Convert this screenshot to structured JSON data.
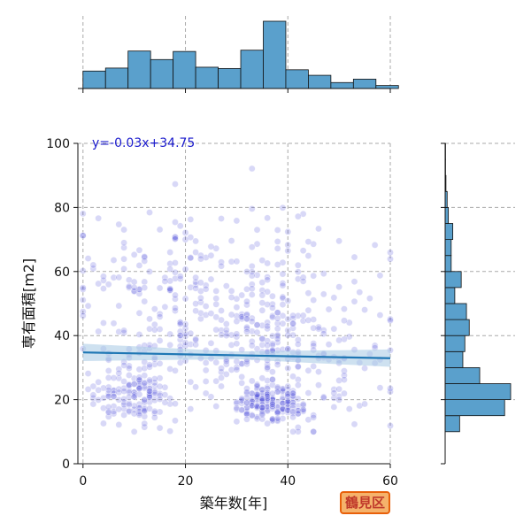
{
  "chart_data": {
    "type": "scatter",
    "xlabel": "築年数[年]",
    "ylabel": "専有面積[m2]",
    "xlim": [
      -1,
      60
    ],
    "ylim": [
      0,
      100
    ],
    "x_ticks": [
      0,
      20,
      40,
      60
    ],
    "y_ticks": [
      0,
      20,
      40,
      60,
      80,
      100
    ],
    "grid": true,
    "regression": {
      "label": "y=-0.03x+34.75",
      "slope": -0.03,
      "intercept": 34.75
    },
    "clusters": [
      {
        "cx": 10,
        "cy": 22,
        "sx": 4,
        "sy": 5,
        "n": 150
      },
      {
        "cx": 36,
        "cy": 19,
        "sx": 3.5,
        "sy": 3,
        "n": 170
      },
      {
        "cx": 17,
        "cy": 45,
        "sx": 9,
        "sy": 12,
        "n": 150
      },
      {
        "cx": 36,
        "cy": 40,
        "sx": 6,
        "sy": 10,
        "n": 170
      },
      {
        "cx": 28,
        "cy": 62,
        "sx": 16,
        "sy": 12,
        "n": 120
      },
      {
        "cx": 48,
        "cy": 30,
        "sx": 8,
        "sy": 12,
        "n": 80
      }
    ],
    "x_histogram": {
      "bin_edges": [
        0,
        4.4,
        8.8,
        13.2,
        17.6,
        22,
        26.4,
        30.8,
        35.2,
        39.6,
        44,
        48.4,
        52.8,
        57.2,
        61.6
      ],
      "counts": [
        41,
        48,
        88,
        68,
        87,
        50,
        47,
        90,
        158,
        44,
        31,
        14,
        22,
        7
      ]
    },
    "y_histogram": {
      "bin_edges": [
        10,
        15,
        20,
        25,
        30,
        35,
        40,
        45,
        50,
        55,
        60,
        65,
        70,
        75,
        80,
        85,
        90,
        95,
        100
      ],
      "counts": [
        36,
        148,
        163,
        86,
        44,
        49,
        60,
        53,
        24,
        40,
        15,
        15,
        19,
        8,
        5,
        2,
        1,
        1
      ]
    },
    "colors": {
      "point": "#3a3ad6",
      "line": "#1f77b4",
      "hist": "#5aa0cc",
      "band": "#aecde6"
    }
  },
  "annotation": {
    "text": "鶴見区",
    "color": "#c0392b",
    "bg": "#f5b26b",
    "border": "#e8600a"
  }
}
